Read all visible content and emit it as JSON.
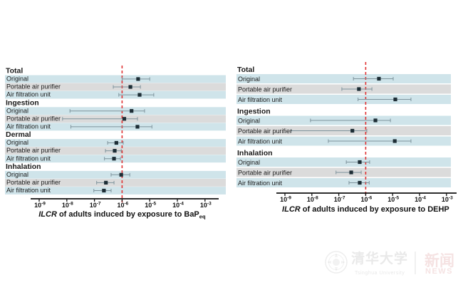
{
  "colors": {
    "band_blue": "#cfe4ea",
    "band_gray": "#dbdbdb",
    "marker": "#1d2d35",
    "error_bar": "#7e939c",
    "reference_line": "#e03131",
    "axis": "#111111",
    "text": "#1a1a1a"
  },
  "watermark": {
    "university_cn": "清华大学",
    "university_en": "Tsinghua University",
    "news_cn": "新闻",
    "news_en": "NEWS"
  },
  "chart_data": [
    {
      "type": "forest",
      "title": {
        "italic": "ILCR",
        "text": " of adults induced by exposure to ",
        "chem": "BaP",
        "chem_sub": "eq"
      },
      "x_range_exponents": [
        -9,
        -3
      ],
      "x_tick_exponents": [
        -9,
        -8,
        -7,
        -6,
        -5,
        -4,
        -3
      ],
      "reference_line": 1e-06,
      "legend_position": "none",
      "grid": false,
      "groups": [
        {
          "label": "Total",
          "items": [
            {
              "label": "Original",
              "value": 3.8e-06,
              "ci": [
                1e-06,
                1e-05
              ]
            },
            {
              "label": "Portable air purifier",
              "value": 2e-06,
              "ci": [
                4.8e-07,
                4.6e-06
              ]
            },
            {
              "label": "Air filtration unit",
              "value": 4.3e-06,
              "ci": [
                7.6e-07,
                1.4e-05
              ]
            }
          ]
        },
        {
          "label": "Ingestion",
          "items": [
            {
              "label": "Original",
              "value": 2.2e-06,
              "ci": [
                1.3e-08,
                6.5e-06
              ]
            },
            {
              "label": "Portable air purifier",
              "value": 1.2e-06,
              "ci": [
                7e-09,
                3.6e-06
              ]
            },
            {
              "label": "Air filtration unit",
              "value": 3.6e-06,
              "ci": [
                1.4e-08,
                1.2e-05
              ]
            }
          ]
        },
        {
          "label": "Dermal",
          "items": [
            {
              "label": "Original",
              "value": 6.2e-07,
              "ci": [
                3e-07,
                1.1e-06
              ]
            },
            {
              "label": "Portable air purifier",
              "value": 5.4e-07,
              "ci": [
                2.5e-07,
                9.3e-07
              ]
            },
            {
              "label": "Air filtration unit",
              "value": 5.1e-07,
              "ci": [
                2.3e-07,
                8.7e-07
              ]
            }
          ]
        },
        {
          "label": "Inhalation",
          "items": [
            {
              "label": "Original",
              "value": 9.3e-07,
              "ci": [
                4e-07,
                1.9e-06
              ]
            },
            {
              "label": "Portable air purifier",
              "value": 2.6e-07,
              "ci": [
                1.2e-07,
                5.1e-07
              ]
            },
            {
              "label": "Air filtration unit",
              "value": 2.2e-07,
              "ci": [
                9.5e-08,
                4e-07
              ]
            }
          ]
        }
      ]
    },
    {
      "type": "forest",
      "title": {
        "italic": "ILCR",
        "text": " of adults induced by exposure to ",
        "chem": "DEHP",
        "chem_sub": ""
      },
      "x_range_exponents": [
        -9,
        -3
      ],
      "x_tick_exponents": [
        -9,
        -8,
        -7,
        -6,
        -5,
        -4,
        -3
      ],
      "reference_line": 1e-06,
      "legend_position": "none",
      "grid": false,
      "groups": [
        {
          "label": "Total",
          "items": [
            {
              "label": "Original",
              "value": 3.1e-06,
              "ci": [
                3.5e-07,
                1.05e-05
              ]
            },
            {
              "label": "Portable air purifier",
              "value": 5.6e-07,
              "ci": [
                1.3e-07,
                1.7e-06
              ]
            },
            {
              "label": "Air filtration unit",
              "value": 1.26e-05,
              "ci": [
                5.2e-07,
                4.8e-05
              ]
            }
          ]
        },
        {
          "label": "Ingestion",
          "items": [
            {
              "label": "Original",
              "value": 2.3e-06,
              "ci": [
                8.9e-09,
                8.3e-06
              ]
            },
            {
              "label": "Portable air purifier",
              "value": 3.2e-07,
              "ci": [
                1.7e-09,
                1.1e-06
              ]
            },
            {
              "label": "Air filtration unit",
              "value": 1.2e-05,
              "ci": [
                4.1e-08,
                4.8e-05
              ]
            }
          ]
        },
        {
          "label": "Inhalation",
          "items": [
            {
              "label": "Original",
              "value": 6e-07,
              "ci": [
                1.9e-07,
                1.4e-06
              ]
            },
            {
              "label": "Portable air purifier",
              "value": 2.9e-07,
              "ci": [
                7.9e-08,
                6.8e-07
              ]
            },
            {
              "label": "Air filtration unit",
              "value": 6e-07,
              "ci": [
                2.4e-07,
                1.35e-06
              ]
            }
          ]
        }
      ]
    }
  ]
}
